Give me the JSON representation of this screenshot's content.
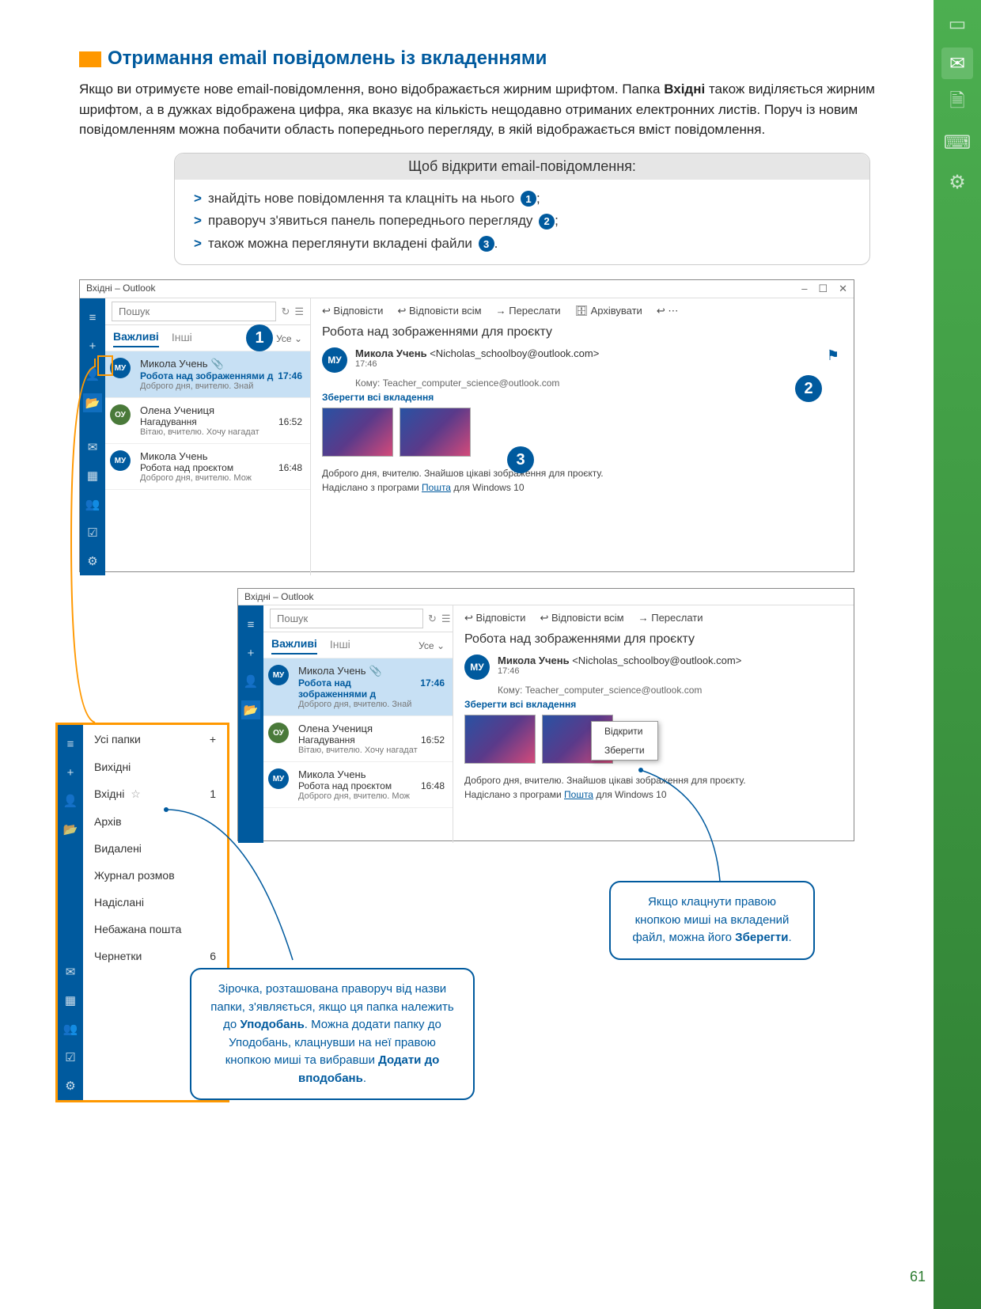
{
  "page_number": "61",
  "heading": "Отримання email повідомлень із вкладеннями",
  "intro_parts": {
    "p1": "Якщо ви отримуєте нове email-повідомлення, воно відображається жирним шрифтом. Папка ",
    "bold1": "Вхідні",
    "p2": " також виділяється жирним шрифтом, а в дужках відображена цифра, яка вказує на кількість нещодавно отриманих електронних листів. Поруч із новим повідомленням можна побачити область попереднього перегляду, в якій відображається вміст повідомлення."
  },
  "steps": {
    "title": "Щоб відкрити email-повідомлення:",
    "items": [
      "знайдіть нове повідомлення та клацніть на нього",
      "праворуч з'явиться панель попереднього перегляду",
      "також можна переглянути вкладені файли"
    ]
  },
  "outlook": {
    "title": "Вхідні – Outlook",
    "search_placeholder": "Пошук",
    "tabs": {
      "important": "Важливі",
      "other": "Інші",
      "all": "Усе"
    },
    "actions": {
      "reply": "Відповісти",
      "reply_all": "Відповісти всім",
      "forward": "Переслати",
      "archive": "Архівувати"
    },
    "messages": [
      {
        "avatar": "МУ",
        "avatar_color": "blue",
        "from": "Микола Учень",
        "subject": "Робота над зображеннями д",
        "time": "17:46",
        "preview": "Доброго дня, вчителю. Знай",
        "bold": true,
        "clip": true
      },
      {
        "avatar": "ОУ",
        "avatar_color": "green",
        "from": "Олена Учениця",
        "subject": "Нагадування",
        "time": "16:52",
        "preview": "Вітаю, вчителю. Хочу нагадат",
        "bold": false,
        "clip": false
      },
      {
        "avatar": "МУ",
        "avatar_color": "blue",
        "from": "Микола Учень",
        "subject": "Робота над проєктом",
        "time": "16:48",
        "preview": "Доброго дня, вчителю. Мож",
        "bold": false,
        "clip": false
      }
    ],
    "read": {
      "subject": "Робота над зображеннями для проєкту",
      "from_name": "Микола Учень",
      "from_email": "<Nicholas_schoolboy@outlook.com>",
      "from_avatar": "МУ",
      "time": "17:46",
      "to_label": "Кому:",
      "to": "Teacher_computer_science@outlook.com",
      "save_all": "Зберегти всі вкладення",
      "body1": "Доброго дня, вчителю. Знайшов цікаві зображення для проєкту.",
      "body2_pre": "Надіслано з програми ",
      "body2_link": "Пошта",
      "body2_post": " для Windows 10"
    },
    "context_menu": {
      "open": "Відкрити",
      "save": "Зберегти"
    }
  },
  "folders": {
    "title": "Усі папки",
    "items": [
      {
        "name": "Вихідні",
        "count": ""
      },
      {
        "name": "Вхідні",
        "count": "1",
        "star": true
      },
      {
        "name": "Архів",
        "count": ""
      },
      {
        "name": "Видалені",
        "count": ""
      },
      {
        "name": "Журнал розмов",
        "count": ""
      },
      {
        "name": "Надіслані",
        "count": ""
      },
      {
        "name": "Небажана пошта",
        "count": ""
      },
      {
        "name": "Чернетки",
        "count": "6"
      }
    ]
  },
  "callouts": {
    "star": {
      "p1": "Зірочка, розташована праворуч від назви папки, з'являється, якщо ця папка належить до ",
      "b1": "Уподобань",
      "p2": ". Можна додати папку до Уподобань, клацнувши на неї правою кнопкою миші та вибравши ",
      "b2": "Додати до вподобань",
      "p3": "."
    },
    "save": {
      "p1": "Якщо клацнути правою кнопкою миші на вкладений файл, можна його ",
      "b1": "Зберегти",
      "p2": "."
    }
  },
  "colors": {
    "primary": "#005a9e",
    "accent": "#ff9800",
    "green_strip": "#4caf50"
  }
}
